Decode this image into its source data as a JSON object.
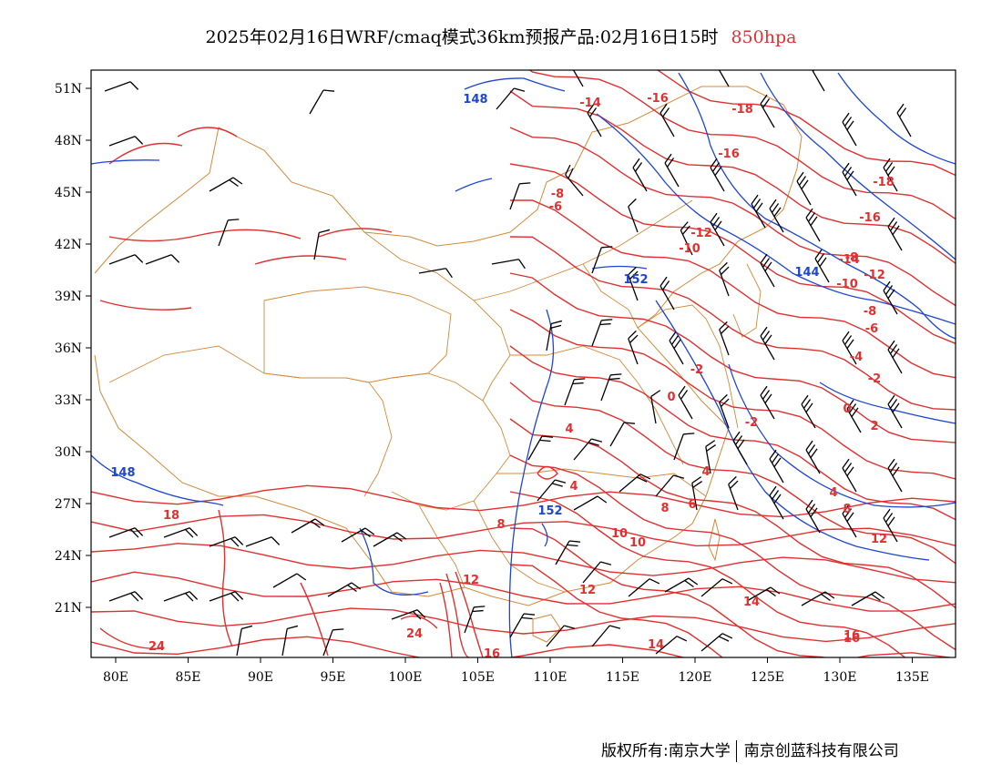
{
  "title": {
    "main": "2025年02月16日WRF/cmaq模式36km预报产品:02月16日15时",
    "level": "850hpa"
  },
  "axes": {
    "x_ticks": [
      "80E",
      "85E",
      "90E",
      "95E",
      "100E",
      "105E",
      "110E",
      "115E",
      "120E",
      "125E",
      "130E",
      "135E"
    ],
    "y_ticks": [
      "51N",
      "48N",
      "45N",
      "42N",
      "39N",
      "36N",
      "33N",
      "30N",
      "27N",
      "24N",
      "21N"
    ]
  },
  "credits": {
    "left": "版权所有:南京大学",
    "right": "南京创蓝科技有限公司"
  },
  "colors": {
    "temperature": "#e03030",
    "height": "#1e46d2",
    "border": "#d4893a",
    "wind": "#000000"
  },
  "labels": {
    "temperature": [
      "-14",
      "-16",
      "-18",
      "-16",
      "-18",
      "-8",
      "-6",
      "-16",
      "-12",
      "-10",
      "-8",
      "-14",
      "-12",
      "-10",
      "-8",
      "-6",
      "-4",
      "-2",
      "-2",
      "0",
      "-2",
      "4",
      "0",
      "2",
      "4",
      "4",
      "4",
      "6",
      "8",
      "8",
      "10",
      "12",
      "8",
      "10",
      "12",
      "12",
      "14",
      "14",
      "16",
      "16",
      "18",
      "24",
      "24",
      "16"
    ],
    "height": [
      "148",
      "152",
      "144",
      "148",
      "152"
    ]
  }
}
